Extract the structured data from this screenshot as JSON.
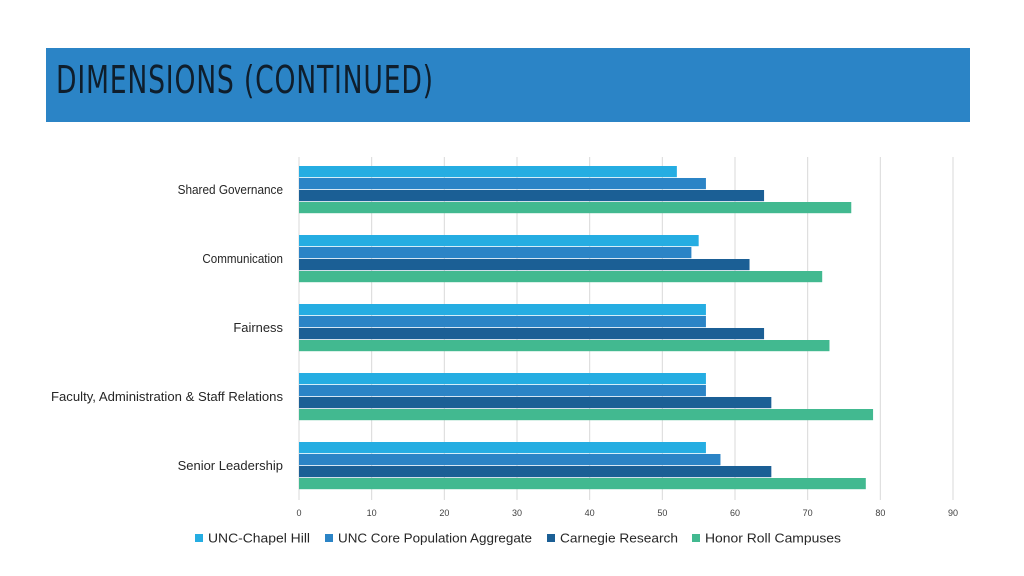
{
  "slide": {
    "title": "DIMENSIONS (CONTINUED)"
  },
  "colors": {
    "banner": "#2b84c6",
    "title_text": "#0f1e2c"
  },
  "chart_data": {
    "type": "bar",
    "orientation": "horizontal",
    "title": "",
    "xlabel": "",
    "ylabel": "",
    "xlim": [
      0,
      90
    ],
    "xticks": [
      0,
      10,
      20,
      30,
      40,
      50,
      60,
      70,
      80,
      90
    ],
    "grid": true,
    "legend_position": "bottom",
    "categories": [
      "Shared Governance",
      "Communication",
      "Fairness",
      "Faculty, Administration & Staff Relations",
      "Senior Leadership"
    ],
    "series": [
      {
        "name": "UNC-Chapel Hill",
        "color": "#25ade2",
        "values": [
          52,
          55,
          56,
          56,
          56
        ]
      },
      {
        "name": "UNC Core Population Aggregate",
        "color": "#2b84c6",
        "values": [
          56,
          54,
          56,
          56,
          58
        ]
      },
      {
        "name": "Carnegie Research",
        "color": "#1b5f95",
        "values": [
          64,
          62,
          64,
          65,
          65
        ]
      },
      {
        "name": "Honor Roll Campuses",
        "color": "#42b990",
        "values": [
          76,
          72,
          73,
          79,
          78
        ]
      }
    ]
  }
}
